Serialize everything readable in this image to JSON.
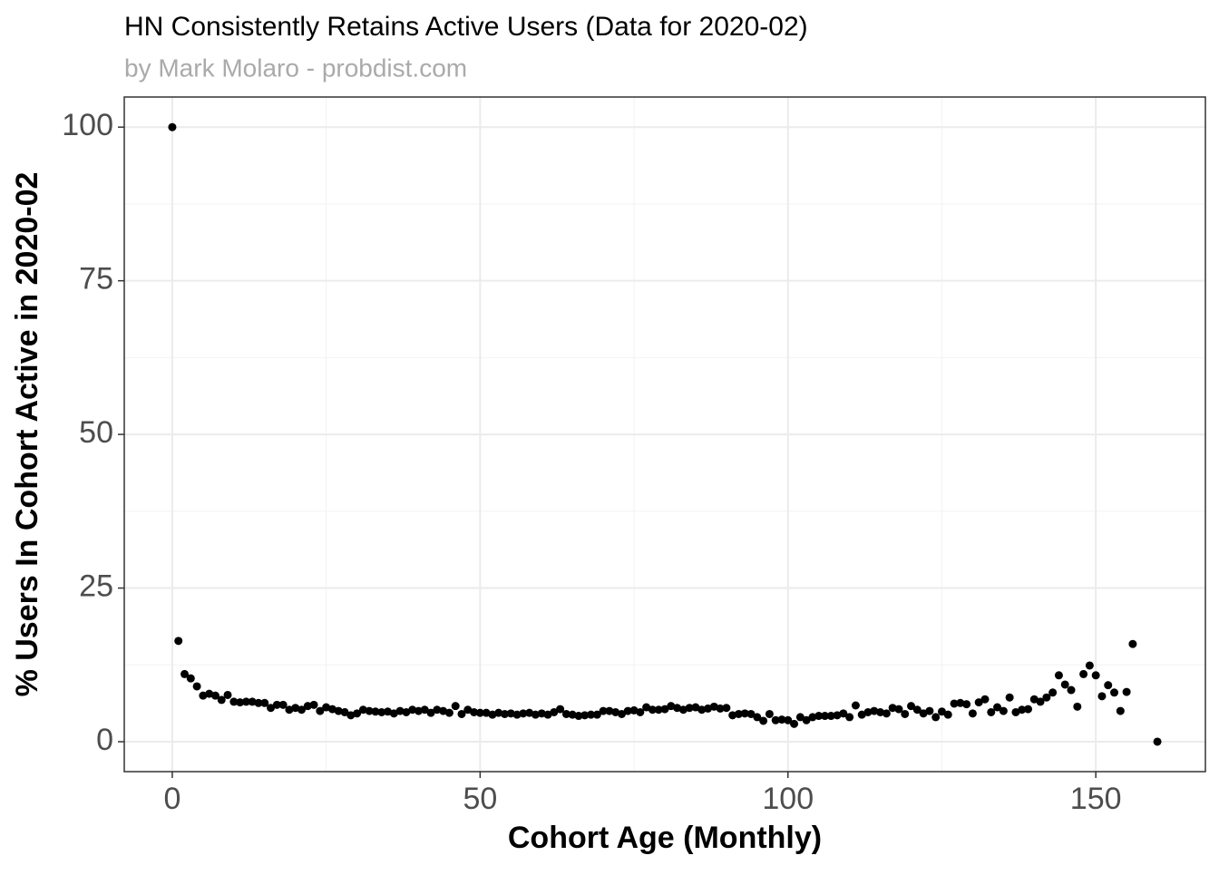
{
  "chart_data": {
    "type": "scatter",
    "title": "HN Consistently Retains Active Users (Data for 2020-02)",
    "subtitle": "by Mark Molaro - probdist.com",
    "x_label": "Cohort Age (Monthly)",
    "y_label": "% Users In Cohort Active in 2020-02",
    "color": "#000000",
    "grid": true,
    "xlim": [
      -7.8,
      167.8
    ],
    "ylim": [
      -4.87,
      104.9
    ],
    "xticks": [
      0,
      50,
      100,
      150
    ],
    "yticks": [
      0,
      25,
      50,
      75,
      100
    ],
    "series": [
      {
        "name": "cohorts",
        "color": "#000000",
        "x": [
          0,
          1,
          2,
          3,
          4,
          5,
          6,
          7,
          8,
          9,
          10,
          11,
          12,
          13,
          14,
          15,
          16,
          17,
          18,
          19,
          20,
          21,
          22,
          23,
          24,
          25,
          26,
          27,
          28,
          29,
          30,
          31,
          32,
          33,
          34,
          35,
          36,
          37,
          38,
          39,
          40,
          41,
          42,
          43,
          44,
          45,
          46,
          47,
          48,
          49,
          50,
          51,
          52,
          53,
          54,
          55,
          56,
          57,
          58,
          59,
          60,
          61,
          62,
          63,
          64,
          65,
          66,
          67,
          68,
          69,
          70,
          71,
          72,
          73,
          74,
          75,
          76,
          77,
          78,
          79,
          80,
          81,
          82,
          83,
          84,
          85,
          86,
          87,
          88,
          89,
          90,
          91,
          92,
          93,
          94,
          95,
          96,
          97,
          98,
          99,
          100,
          101,
          102,
          103,
          104,
          105,
          106,
          107,
          108,
          109,
          110,
          111,
          112,
          113,
          114,
          115,
          116,
          117,
          118,
          119,
          120,
          121,
          122,
          123,
          124,
          125,
          126,
          127,
          128,
          129,
          130,
          131,
          132,
          133,
          134,
          135,
          136,
          137,
          138,
          139,
          140,
          141,
          142,
          143,
          144,
          145,
          146,
          147,
          148,
          149,
          150,
          151,
          152,
          153,
          154,
          155,
          156,
          160
        ],
        "values": [
          100,
          16.4,
          11,
          10.3,
          9,
          7.5,
          7.8,
          7.5,
          6.8,
          7.6,
          6.5,
          6.4,
          6.5,
          6.5,
          6.3,
          6.3,
          5.5,
          6,
          6,
          5.2,
          5.5,
          5.2,
          5.8,
          6,
          5,
          5.6,
          5.3,
          5,
          4.8,
          4.3,
          4.6,
          5.2,
          5,
          4.9,
          4.8,
          4.9,
          4.6,
          5,
          4.8,
          5.2,
          5,
          5.2,
          4.7,
          5.2,
          5,
          4.7,
          5.8,
          4.5,
          5.2,
          4.8,
          4.7,
          4.7,
          4.4,
          4.7,
          4.5,
          4.6,
          4.4,
          4.6,
          4.7,
          4.4,
          4.6,
          4.4,
          4.8,
          5.3,
          4.5,
          4.4,
          4.2,
          4.3,
          4.4,
          4.4,
          5,
          5,
          4.8,
          4.5,
          5,
          5.1,
          4.8,
          5.6,
          5.2,
          5.2,
          5.3,
          5.8,
          5.5,
          5.2,
          5.5,
          5.6,
          5.2,
          5.4,
          5.7,
          5.4,
          5.5,
          4.3,
          4.5,
          4.6,
          4.5,
          4,
          3.4,
          4.5,
          3.5,
          3.6,
          3.5,
          2.9,
          4,
          3.5,
          4,
          4.2,
          4.2,
          4.2,
          4.3,
          4.6,
          4,
          5.9,
          4.4,
          4.8,
          5,
          4.8,
          4.6,
          5.5,
          5.3,
          4.5,
          5.8,
          5.2,
          4.6,
          5,
          4,
          4.9,
          4.4,
          6.2,
          6.3,
          6.1,
          4.6,
          6.4,
          6.9,
          4.8,
          5.6,
          5,
          7.2,
          4.8,
          5.2,
          5.3,
          6.9,
          6.5,
          7.2,
          8,
          10.8,
          9.3,
          8.4,
          5.7,
          11,
          12.4,
          10.8,
          7.4,
          9.2,
          8,
          5,
          8.1,
          15.9,
          0
        ]
      }
    ]
  }
}
